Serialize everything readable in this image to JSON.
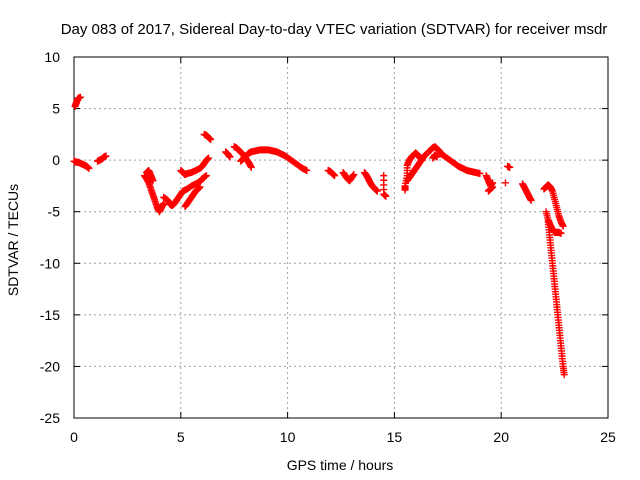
{
  "chart_data": {
    "type": "scatter",
    "title": "Day 083 of 2017, Sidereal Day-to-day VTEC variation (SDTVAR) for receiver msdr",
    "xlabel": "GPS time / hours",
    "ylabel": "SDTVAR / TECUs",
    "xlim": [
      0,
      25
    ],
    "ylim": [
      -25,
      10
    ],
    "xticks": [
      0,
      5,
      10,
      15,
      20,
      25
    ],
    "yticks": [
      -25,
      -20,
      -15,
      -10,
      -5,
      0,
      5,
      10
    ],
    "grid": true,
    "marker": "+",
    "series": [
      {
        "name": "SDTVAR",
        "color": "#ff0000",
        "segments": [
          [
            [
              0.05,
              5.2
            ],
            [
              0.1,
              5.5
            ],
            [
              0.15,
              5.8
            ],
            [
              0.2,
              6.0
            ],
            [
              0.3,
              6.1
            ]
          ],
          [
            [
              0.0,
              -0.1
            ],
            [
              0.1,
              -0.2
            ],
            [
              0.2,
              -0.2
            ],
            [
              0.3,
              -0.3
            ],
            [
              0.4,
              -0.4
            ],
            [
              0.5,
              -0.5
            ],
            [
              0.6,
              -0.6
            ],
            [
              0.7,
              -0.8
            ]
          ],
          [
            [
              1.1,
              -0.1
            ],
            [
              1.2,
              0.0
            ],
            [
              1.3,
              0.1
            ],
            [
              1.4,
              0.3
            ],
            [
              1.5,
              0.4
            ]
          ],
          [
            [
              3.3,
              -1.5
            ],
            [
              3.4,
              -1.8
            ],
            [
              3.5,
              -2.2
            ],
            [
              3.6,
              -2.8
            ],
            [
              3.7,
              -3.4
            ],
            [
              3.8,
              -4.0
            ],
            [
              3.9,
              -4.6
            ],
            [
              4.0,
              -5.0
            ],
            [
              4.1,
              -4.6
            ],
            [
              4.2,
              -4.2
            ]
          ],
          [
            [
              3.4,
              -1.2
            ],
            [
              3.5,
              -1.0
            ],
            [
              3.6,
              -1.5
            ],
            [
              3.7,
              -2.0
            ]
          ],
          [
            [
              4.2,
              -3.6
            ],
            [
              4.4,
              -3.9
            ],
            [
              4.5,
              -4.3
            ],
            [
              4.6,
              -4.4
            ],
            [
              4.7,
              -4.2
            ],
            [
              4.8,
              -3.9
            ],
            [
              4.9,
              -3.6
            ],
            [
              5.0,
              -3.3
            ],
            [
              5.1,
              -3.0
            ],
            [
              5.3,
              -2.8
            ],
            [
              5.5,
              -2.5
            ],
            [
              5.7,
              -2.3
            ],
            [
              5.9,
              -2.1
            ],
            [
              6.0,
              -1.8
            ],
            [
              6.2,
              -1.5
            ]
          ],
          [
            [
              5.0,
              -1.0
            ],
            [
              5.1,
              -1.2
            ],
            [
              5.2,
              -1.4
            ],
            [
              5.3,
              -1.3
            ],
            [
              5.5,
              -1.2
            ],
            [
              5.7,
              -1.0
            ],
            [
              5.9,
              -0.8
            ],
            [
              6.0,
              -0.6
            ],
            [
              6.1,
              -0.3
            ],
            [
              6.2,
              0.0
            ],
            [
              6.3,
              0.2
            ]
          ],
          [
            [
              5.2,
              -4.5
            ],
            [
              5.3,
              -4.2
            ],
            [
              5.4,
              -3.9
            ],
            [
              5.5,
              -3.6
            ],
            [
              5.6,
              -3.3
            ],
            [
              5.7,
              -3.0
            ],
            [
              5.8,
              -2.8
            ],
            [
              5.9,
              -2.6
            ]
          ],
          [
            [
              6.1,
              2.5
            ],
            [
              6.2,
              2.4
            ],
            [
              6.3,
              2.2
            ],
            [
              6.4,
              2.0
            ]
          ],
          [
            [
              7.1,
              0.8
            ],
            [
              7.2,
              0.6
            ],
            [
              7.3,
              0.3
            ]
          ],
          [
            [
              7.5,
              1.3
            ],
            [
              7.6,
              1.2
            ],
            [
              7.7,
              1.0
            ],
            [
              7.8,
              0.8
            ],
            [
              7.9,
              0.6
            ],
            [
              8.0,
              0.3
            ],
            [
              8.1,
              0.0
            ],
            [
              8.2,
              -0.3
            ],
            [
              8.3,
              -0.7
            ]
          ],
          [
            [
              7.8,
              -0.1
            ],
            [
              7.9,
              0.1
            ],
            [
              8.0,
              0.3
            ],
            [
              8.1,
              0.5
            ],
            [
              8.2,
              0.7
            ],
            [
              8.3,
              0.8
            ],
            [
              8.5,
              0.9
            ],
            [
              8.7,
              1.0
            ],
            [
              8.9,
              1.0
            ],
            [
              9.1,
              1.0
            ],
            [
              9.3,
              0.9
            ],
            [
              9.5,
              0.8
            ],
            [
              9.7,
              0.6
            ],
            [
              9.9,
              0.4
            ],
            [
              10.1,
              0.1
            ],
            [
              10.3,
              -0.2
            ],
            [
              10.5,
              -0.5
            ],
            [
              10.7,
              -0.8
            ],
            [
              10.9,
              -1.0
            ]
          ],
          [
            [
              11.9,
              -1.0
            ],
            [
              12.0,
              -1.1
            ],
            [
              12.1,
              -1.3
            ],
            [
              12.2,
              -1.5
            ]
          ],
          [
            [
              12.6,
              -1.2
            ],
            [
              12.7,
              -1.5
            ],
            [
              12.8,
              -1.8
            ],
            [
              12.9,
              -2.0
            ],
            [
              13.0,
              -1.7
            ],
            [
              13.1,
              -1.4
            ]
          ],
          [
            [
              13.6,
              -1.2
            ],
            [
              13.7,
              -1.5
            ],
            [
              13.8,
              -1.9
            ],
            [
              13.9,
              -2.3
            ],
            [
              14.0,
              -2.6
            ],
            [
              14.1,
              -2.8
            ],
            [
              14.2,
              -3.0
            ]
          ],
          [
            [
              14.5,
              -1.5
            ],
            [
              14.5,
              -3.3
            ],
            [
              14.6,
              -3.5
            ]
          ],
          [
            [
              15.5,
              -2.9
            ],
            [
              15.5,
              -2.5
            ],
            [
              15.6,
              -1.5
            ],
            [
              15.6,
              -0.5
            ],
            [
              15.7,
              0.0
            ],
            [
              15.8,
              0.3
            ],
            [
              15.9,
              0.5
            ],
            [
              16.0,
              0.7
            ],
            [
              16.1,
              0.5
            ],
            [
              16.2,
              0.2
            ],
            [
              16.3,
              0.0
            ]
          ],
          [
            [
              15.6,
              -2.0
            ],
            [
              15.7,
              -1.7
            ],
            [
              15.8,
              -1.4
            ],
            [
              15.9,
              -1.1
            ],
            [
              16.0,
              -0.8
            ],
            [
              16.1,
              -0.5
            ],
            [
              16.2,
              -0.2
            ],
            [
              16.3,
              0.1
            ],
            [
              16.4,
              0.4
            ],
            [
              16.5,
              0.6
            ]
          ],
          [
            [
              16.6,
              0.8
            ],
            [
              16.7,
              1.0
            ],
            [
              16.8,
              1.2
            ],
            [
              16.9,
              1.3
            ],
            [
              17.0,
              1.1
            ],
            [
              17.1,
              0.9
            ],
            [
              17.2,
              0.6
            ],
            [
              17.4,
              0.3
            ],
            [
              17.6,
              0.0
            ],
            [
              17.8,
              -0.3
            ],
            [
              18.0,
              -0.6
            ],
            [
              18.2,
              -0.8
            ],
            [
              18.4,
              -1.0
            ],
            [
              18.6,
              -1.1
            ],
            [
              18.8,
              -1.2
            ],
            [
              19.0,
              -1.3
            ]
          ],
          [
            [
              16.8,
              0.2
            ],
            [
              16.9,
              0.5
            ],
            [
              17.0,
              0.3
            ]
          ],
          [
            [
              19.3,
              -1.5
            ],
            [
              19.4,
              -2.0
            ],
            [
              19.5,
              -2.5
            ],
            [
              19.6,
              -2.2
            ]
          ],
          [
            [
              19.4,
              -3.0
            ],
            [
              19.5,
              -2.8
            ],
            [
              19.6,
              -2.6
            ]
          ],
          [
            [
              20.3,
              -0.6
            ],
            [
              20.4,
              -0.7
            ]
          ],
          [
            [
              20.2,
              -2.2
            ]
          ],
          [
            [
              21.0,
              -2.3
            ],
            [
              21.1,
              -2.7
            ],
            [
              21.2,
              -3.1
            ],
            [
              21.3,
              -3.5
            ],
            [
              21.4,
              -3.9
            ]
          ],
          [
            [
              22.0,
              -2.8
            ],
            [
              22.1,
              -2.6
            ],
            [
              22.2,
              -2.4
            ],
            [
              22.3,
              -2.6
            ],
            [
              22.4,
              -3.0
            ],
            [
              22.5,
              -3.8
            ],
            [
              22.6,
              -4.6
            ],
            [
              22.7,
              -5.4
            ],
            [
              22.8,
              -6.0
            ],
            [
              22.9,
              -6.4
            ]
          ],
          [
            [
              22.1,
              -5.0
            ],
            [
              22.2,
              -5.8
            ],
            [
              22.3,
              -6.3
            ],
            [
              22.4,
              -6.7
            ],
            [
              22.5,
              -7.0
            ],
            [
              22.6,
              -7.0
            ],
            [
              22.7,
              -7.0
            ],
            [
              22.8,
              -7.1
            ]
          ],
          [
            [
              22.2,
              -6.0
            ],
            [
              22.25,
              -7.0
            ],
            [
              22.3,
              -8.0
            ],
            [
              22.35,
              -9.0
            ],
            [
              22.4,
              -10.0
            ],
            [
              22.45,
              -11.0
            ],
            [
              22.5,
              -12.0
            ],
            [
              22.55,
              -13.0
            ],
            [
              22.6,
              -14.0
            ],
            [
              22.65,
              -15.0
            ],
            [
              22.7,
              -16.0
            ],
            [
              22.75,
              -17.0
            ],
            [
              22.8,
              -18.0
            ],
            [
              22.85,
              -19.0
            ],
            [
              22.9,
              -20.0
            ],
            [
              22.95,
              -20.8
            ]
          ]
        ]
      }
    ]
  }
}
